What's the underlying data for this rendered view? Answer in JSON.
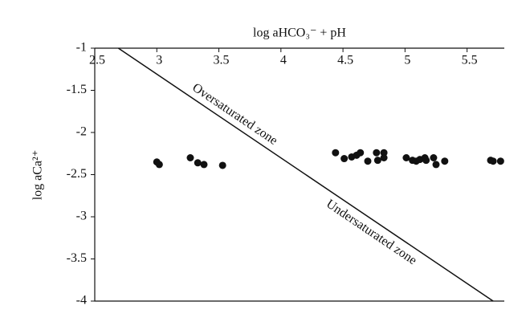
{
  "chart_data": {
    "type": "scatter",
    "x_label": "log aHCO₃⁻ + pH",
    "y_label": "log aCa²⁺",
    "xlim": [
      2.5,
      5.8
    ],
    "xticks": [
      2.5,
      3,
      3.5,
      4,
      4.5,
      5,
      5.5
    ],
    "ylim": [
      -4,
      -1
    ],
    "yticks": [
      -1,
      -1.5,
      -2,
      -2.5,
      -3,
      -3.5,
      -4
    ],
    "color": "#111111",
    "x": [
      3.0,
      3.02,
      3.27,
      3.33,
      3.38,
      3.53,
      4.44,
      4.51,
      4.57,
      4.61,
      4.64,
      4.7,
      4.77,
      4.78,
      4.83,
      4.83,
      5.01,
      5.06,
      5.09,
      5.12,
      5.16,
      5.17,
      5.23,
      5.25,
      5.32,
      5.69,
      5.71,
      5.77
    ],
    "values": [
      -2.35,
      -2.38,
      -2.3,
      -2.36,
      -2.38,
      -2.39,
      -2.24,
      -2.31,
      -2.29,
      -2.27,
      -2.24,
      -2.34,
      -2.24,
      -2.33,
      -2.24,
      -2.3,
      -2.3,
      -2.33,
      -2.34,
      -2.32,
      -2.3,
      -2.33,
      -2.3,
      -2.38,
      -2.34,
      -2.33,
      -2.34,
      -2.34
    ],
    "reference_line": {
      "x": [
        2.69,
        5.71
      ],
      "values": [
        -1,
        -4
      ]
    },
    "annotations": [
      "Oversaturated zone",
      "Undersaturated zone"
    ]
  }
}
